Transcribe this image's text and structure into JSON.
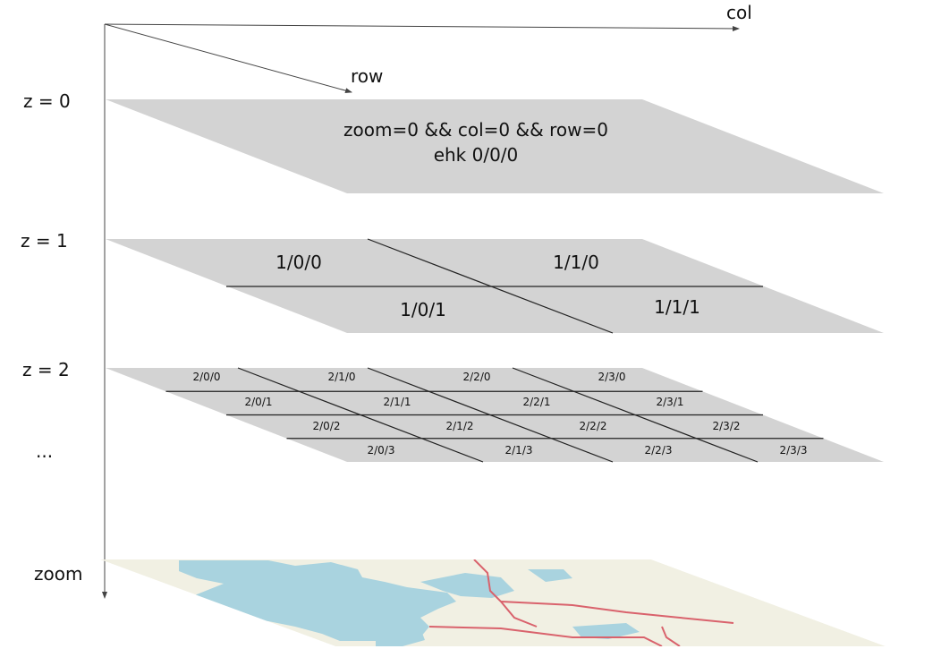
{
  "colors": {
    "tile_fill": "#d3d3d3",
    "map_land": "#f1f0e3",
    "map_water": "#a9d3df",
    "map_road": "#d9626c",
    "axis": "#444444"
  },
  "axes": {
    "col_label": "col",
    "row_label": "row",
    "zoom_label": "zoom"
  },
  "levels": [
    {
      "label": "z = 0"
    },
    {
      "label": "z = 1"
    },
    {
      "label": "z = 2"
    }
  ],
  "ellipsis": "...",
  "zoom0": {
    "line1": "zoom=0 && col=0 && row=0",
    "line2": "ehk 0/0/0"
  },
  "zoom1_tiles": [
    "1/0/0",
    "1/1/0",
    "1/0/1",
    "1/1/1"
  ],
  "zoom2_tiles": [
    "2/0/0",
    "2/1/0",
    "2/2/0",
    "2/3/0",
    "2/0/1",
    "2/1/1",
    "2/2/1",
    "2/3/1",
    "2/0/2",
    "2/1/2",
    "2/2/2",
    "2/3/2",
    "2/0/3",
    "2/1/3",
    "2/2/3",
    "2/3/3"
  ],
  "map_plane": {
    "icon": "basemap-map-icon"
  }
}
